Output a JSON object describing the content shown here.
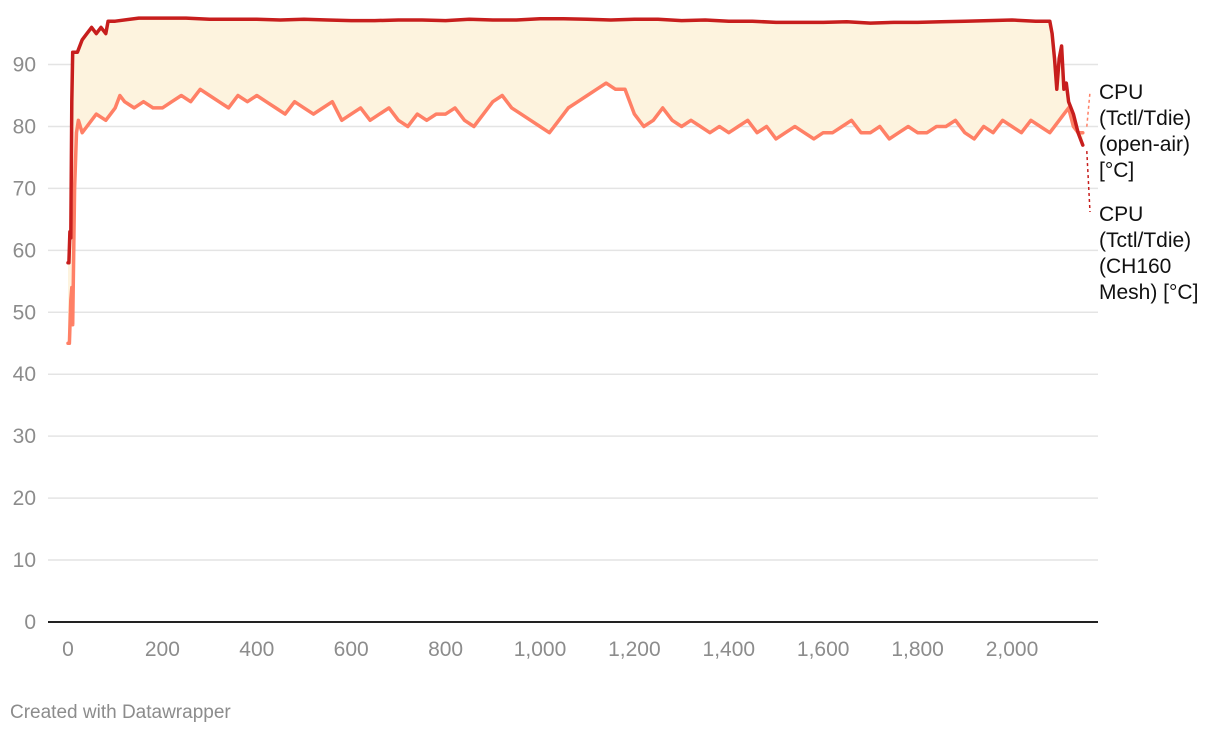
{
  "chart_data": {
    "type": "line",
    "title": "",
    "xlabel": "",
    "ylabel": "",
    "xlim": [
      0,
      2160
    ],
    "ylim": [
      0,
      98
    ],
    "x_ticks": [
      0,
      200,
      400,
      600,
      800,
      1000,
      1200,
      1400,
      1600,
      1800,
      2000
    ],
    "x_tick_labels": [
      "0",
      "200",
      "400",
      "600",
      "800",
      "1,000",
      "1,200",
      "1,400",
      "1,600",
      "1,800",
      "2,000"
    ],
    "y_ticks": [
      0,
      10,
      20,
      30,
      40,
      50,
      60,
      70,
      80,
      90
    ],
    "y_tick_labels": [
      "0",
      "10",
      "20",
      "30",
      "40",
      "50",
      "60",
      "70",
      "80",
      "90"
    ],
    "grid": true,
    "legend": "direct labels at right end of lines",
    "fill_between_color": "#fdf3de",
    "series": [
      {
        "name": "CPU (Tctl/Tdie) (open-air) [°C]",
        "label_lines": [
          "CPU",
          "(Tctl/Tdie)",
          "(open-air)",
          "[°C]"
        ],
        "color": "#ff8066",
        "x": [
          0,
          3,
          6,
          8,
          10,
          14,
          18,
          22,
          26,
          30,
          40,
          60,
          80,
          100,
          110,
          120,
          140,
          160,
          180,
          200,
          220,
          240,
          260,
          280,
          300,
          320,
          340,
          360,
          380,
          400,
          420,
          440,
          460,
          480,
          500,
          520,
          540,
          560,
          580,
          600,
          620,
          640,
          660,
          680,
          700,
          720,
          740,
          760,
          780,
          800,
          820,
          840,
          860,
          880,
          900,
          920,
          940,
          960,
          980,
          1000,
          1020,
          1040,
          1060,
          1080,
          1100,
          1120,
          1140,
          1160,
          1180,
          1200,
          1220,
          1240,
          1260,
          1280,
          1300,
          1320,
          1340,
          1360,
          1380,
          1400,
          1420,
          1440,
          1460,
          1480,
          1500,
          1520,
          1540,
          1560,
          1580,
          1600,
          1620,
          1640,
          1660,
          1680,
          1700,
          1720,
          1740,
          1760,
          1780,
          1800,
          1820,
          1840,
          1860,
          1880,
          1900,
          1920,
          1940,
          1960,
          1980,
          2000,
          2020,
          2040,
          2060,
          2080,
          2100,
          2110,
          2120,
          2130,
          2140,
          2150
        ],
        "y": [
          45,
          45,
          52,
          54,
          48,
          70,
          79,
          81,
          80,
          79,
          80,
          82,
          81,
          83,
          85,
          84,
          83,
          84,
          83,
          83,
          84,
          85,
          84,
          86,
          85,
          84,
          83,
          85,
          84,
          85,
          84,
          83,
          82,
          84,
          83,
          82,
          83,
          84,
          81,
          82,
          83,
          81,
          82,
          83,
          81,
          80,
          82,
          81,
          82,
          82,
          83,
          81,
          80,
          82,
          84,
          85,
          83,
          82,
          81,
          80,
          79,
          81,
          83,
          84,
          85,
          86,
          87,
          86,
          86,
          82,
          80,
          81,
          83,
          81,
          80,
          81,
          80,
          79,
          80,
          79,
          80,
          81,
          79,
          80,
          78,
          79,
          80,
          79,
          78,
          79,
          79,
          80,
          81,
          79,
          79,
          80,
          78,
          79,
          80,
          79,
          79,
          80,
          80,
          81,
          79,
          78,
          80,
          79,
          81,
          80,
          79,
          81,
          80,
          79,
          81,
          82,
          83,
          80,
          79,
          79
        ]
      },
      {
        "name": "CPU (Tctl/Tdie) (CH160 Mesh) [°C]",
        "label_lines": [
          "CPU",
          "(Tctl/Tdie)",
          "(CH160",
          "Mesh) [°C]"
        ],
        "color": "#c71e1d",
        "x": [
          0,
          2,
          4,
          6,
          8,
          10,
          14,
          20,
          30,
          40,
          50,
          60,
          70,
          80,
          85,
          100,
          150,
          200,
          250,
          300,
          350,
          400,
          450,
          500,
          550,
          600,
          650,
          700,
          750,
          800,
          850,
          900,
          950,
          1000,
          1050,
          1100,
          1150,
          1200,
          1250,
          1300,
          1350,
          1400,
          1450,
          1500,
          1550,
          1600,
          1650,
          1700,
          1750,
          1800,
          1850,
          1900,
          1950,
          2000,
          2050,
          2080,
          2085,
          2090,
          2095,
          2100,
          2105,
          2110,
          2115,
          2120,
          2130,
          2140,
          2150
        ],
        "y": [
          58,
          58,
          63,
          62,
          84,
          92,
          92,
          92,
          94,
          95,
          96,
          95,
          96,
          95,
          97,
          97,
          97.5,
          97.5,
          97.5,
          97.3,
          97.3,
          97.3,
          97.2,
          97.3,
          97.2,
          97.1,
          97.1,
          97.2,
          97.2,
          97.1,
          97.3,
          97.2,
          97.2,
          97.4,
          97.4,
          97.3,
          97.2,
          97.3,
          97.3,
          97.1,
          97.2,
          97,
          97,
          96.8,
          96.8,
          96.8,
          96.9,
          96.7,
          96.8,
          96.8,
          96.9,
          97,
          97.1,
          97.2,
          97,
          97,
          95,
          91,
          86,
          91,
          93,
          86,
          87,
          84,
          82,
          79,
          77
        ]
      }
    ]
  },
  "credit": "Created with Datawrapper"
}
